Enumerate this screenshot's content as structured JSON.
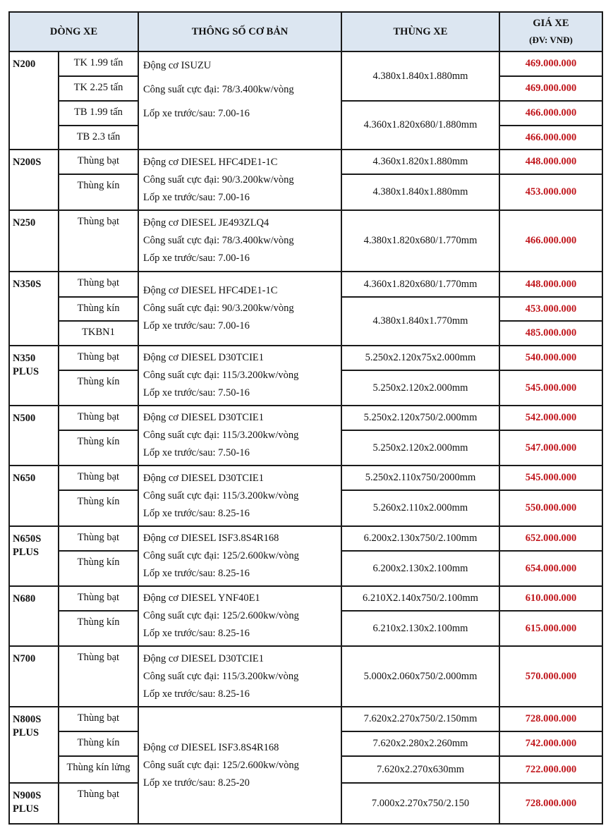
{
  "header": {
    "model": "DÒNG XE",
    "specs": "THÔNG SỐ CƠ BẢN",
    "body": "THÙNG XE",
    "price_line1": "GIÁ XE",
    "price_line2": "(ĐV: VNĐ)"
  },
  "colors": {
    "price": "#c0161c",
    "header_bg": "#dce6f1",
    "border": "#1a1a1a"
  },
  "groups": [
    {
      "model": [
        "N200"
      ],
      "specs": [
        "Động cơ ISUZU",
        "Công suất cực đại: 78/3.400kw/vòng",
        "Lốp xe trước/sau: 7.00-16"
      ],
      "spec_rows": 4,
      "variants": [
        "TK 1.99 tấn",
        "TK 2.25 tấn",
        "TB 1.99 tấn",
        "TB 2.3 tấn"
      ],
      "bodies": [
        {
          "text": "4.380x1.840x1.880mm",
          "rows": 2
        },
        {
          "text": "4.360x1.820x680/1.880mm",
          "rows": 2
        }
      ],
      "prices": [
        "469.000.000",
        "469.000.000",
        "466.000.000",
        "466.000.000"
      ]
    },
    {
      "model": [
        "N200S"
      ],
      "specs": [
        "Động cơ DIESEL HFC4DE1-1C",
        "Công suất cực đại: 90/3.200kw/vòng",
        "Lốp xe trước/sau: 7.00-16"
      ],
      "spec_rows": 2,
      "variants": [
        "Thùng bạt",
        "Thùng kín"
      ],
      "bodies": [
        {
          "text": "4.360x1.820x1.880mm",
          "rows": 1
        },
        {
          "text": "4.380x1.840x1.880mm",
          "rows": 1
        }
      ],
      "prices": [
        "448.000.000",
        "453.000.000"
      ]
    },
    {
      "model": [
        "N250"
      ],
      "specs": [
        "Động cơ  DIESEL JE493ZLQ4",
        "Công suất cực đại: 78/3.400kw/vòng",
        "Lốp xe trước/sau: 7.00-16"
      ],
      "spec_rows": 1,
      "variants": [
        "Thùng bạt"
      ],
      "bodies": [
        {
          "text": "4.380x1.820x680/1.770mm",
          "rows": 1
        }
      ],
      "prices": [
        "466.000.000"
      ]
    },
    {
      "model": [
        "N350S"
      ],
      "specs": [
        "Động cơ DIESEL HFC4DE1-1C",
        "Công suất cực đại: 90/3.200kw/vòng",
        "Lốp xe trước/sau: 7.00-16"
      ],
      "spec_rows": 3,
      "variants": [
        "Thùng bạt",
        "Thùng kín",
        "TKBN1"
      ],
      "bodies": [
        {
          "text": "4.360x1.820x680/1.770mm",
          "rows": 1
        },
        {
          "text": "4.380x1.840x1.770mm",
          "rows": 2
        }
      ],
      "prices": [
        "448.000.000",
        "453.000.000",
        "485.000.000"
      ]
    },
    {
      "model": [
        "N350",
        "PLUS"
      ],
      "specs": [
        "Động cơ DIESEL D30TCIE1",
        "Công suất cực đại: 115/3.200kw/vòng",
        "Lốp xe trước/sau: 7.50-16"
      ],
      "spec_rows": 2,
      "variants": [
        "Thùng bạt",
        "Thùng kín"
      ],
      "bodies": [
        {
          "text": "5.250x2.120x75x2.000mm",
          "rows": 1
        },
        {
          "text": "5.250x2.120x2.000mm",
          "rows": 1
        }
      ],
      "prices": [
        "540.000.000",
        "545.000.000"
      ]
    },
    {
      "model": [
        "N500"
      ],
      "specs": [
        "Động cơ DIESEL D30TCIE1",
        "Công suất cực đại: 115/3.200kw/vòng",
        "Lốp xe trước/sau: 7.50-16"
      ],
      "spec_rows": 2,
      "variants": [
        "Thùng bạt",
        "Thùng kín"
      ],
      "bodies": [
        {
          "text": "5.250x2.120x750/2.000mm",
          "rows": 1
        },
        {
          "text": "5.250x2.120x2.000mm",
          "rows": 1
        }
      ],
      "prices": [
        "542.000.000",
        "547.000.000"
      ]
    },
    {
      "model": [
        "N650"
      ],
      "specs": [
        "Động cơ DIESEL D30TCIE1",
        "Công suất cực đại: 115/3.200kw/vòng",
        "Lốp xe trước/sau: 8.25-16"
      ],
      "spec_rows": 2,
      "variants": [
        "Thùng bạt",
        "Thùng kín"
      ],
      "bodies": [
        {
          "text": "5.250x2.110x750/2000mm",
          "rows": 1
        },
        {
          "text": "5.260x2.110x2.000mm",
          "rows": 1
        }
      ],
      "prices": [
        "545.000.000",
        "550.000.000"
      ]
    },
    {
      "model": [
        "N650S",
        "PLUS"
      ],
      "specs": [
        "Động cơ DIESEL ISF3.8S4R168",
        "Công suất cực đại: 125/2.600kw/vòng",
        "Lốp xe trước/sau: 8.25-16"
      ],
      "spec_rows": 2,
      "variants": [
        "Thùng bạt",
        "Thùng kín"
      ],
      "bodies": [
        {
          "text": "6.200x2.130x750/2.100mm",
          "rows": 1
        },
        {
          "text": "6.200x2.130x2.100mm",
          "rows": 1
        }
      ],
      "prices": [
        "652.000.000",
        "654.000.000"
      ]
    },
    {
      "model": [
        "N680"
      ],
      "specs": [
        "Động cơ DIESEL YNF40E1",
        "Công suất cực đại: 125/2.600kw/vòng",
        "Lốp xe trước/sau:  8.25-16"
      ],
      "spec_rows": 2,
      "variants": [
        "Thùng bạt",
        "Thùng kín"
      ],
      "bodies": [
        {
          "text": "6.210X2.140x750/2.100mm",
          "rows": 1
        },
        {
          "text": "6.210x2.130x2.100mm",
          "rows": 1
        }
      ],
      "prices": [
        "610.000.000",
        "615.000.000"
      ]
    },
    {
      "model": [
        "N700"
      ],
      "specs": [
        "Động cơ DIESEL D30TCIE1",
        "Công suất cực đại: 115/3.200kw/vòng",
        "Lốp xe trước/sau: 8.25-16"
      ],
      "spec_rows": 1,
      "variants": [
        "Thùng bạt"
      ],
      "bodies": [
        {
          "text": "5.000x2.060x750/2.000mm",
          "rows": 1
        }
      ],
      "prices": [
        "570.000.000"
      ]
    },
    {
      "model": [
        "N800S",
        "PLUS"
      ],
      "specs": [
        "Động cơ DIESEL ISF3.8S4R168",
        "Công suất cực đại: 125/2.600kw/vòng",
        "Lốp xe trước/sau: 8.25-20"
      ],
      "spec_rows": 4,
      "variants": [
        "Thùng bạt",
        "Thùng kín",
        "Thùng kín lửng"
      ],
      "bodies": [
        {
          "text": "7.620x2.270x750/2.150mm",
          "rows": 1
        },
        {
          "text": "7.620x2.280x2.260mm",
          "rows": 1
        },
        {
          "text": "7.620x2.270x630mm",
          "rows": 1
        }
      ],
      "prices": [
        "728.000.000",
        "742.000.000",
        "722.000.000"
      ]
    },
    {
      "model": [
        "N900S",
        "PLUS"
      ],
      "specs": null,
      "spec_rows": 0,
      "variants": [
        "Thùng bạt"
      ],
      "bodies": [
        {
          "text": "7.000x2.270x750/2.150",
          "rows": 1
        }
      ],
      "prices": [
        "728.000.000"
      ]
    }
  ]
}
